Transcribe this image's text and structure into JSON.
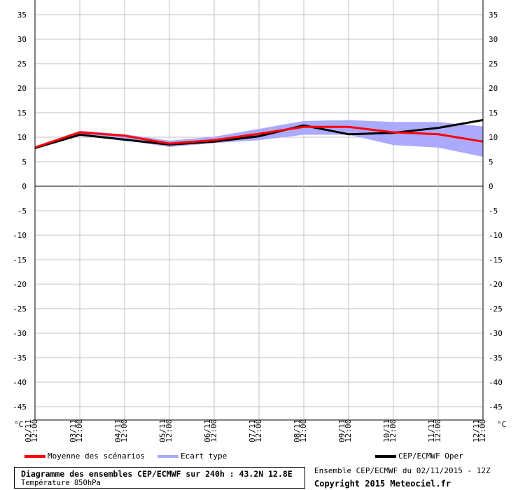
{
  "chart_data": {
    "type": "line",
    "title": "Diagramme des ensembles CEP/ECMWF sur 240h : 43.2N 12.8E",
    "subtitle": "Température 850hPa",
    "ylabel": "°C",
    "ylim": [
      -47.86,
      37
    ],
    "yticks": [
      35,
      30,
      25,
      20,
      15,
      10,
      5,
      0,
      -5,
      -10,
      -15,
      -20,
      -25,
      -30,
      -35,
      -40,
      -45
    ],
    "x": [
      "02/11 12:00",
      "03/11 12:00",
      "04/11 12:00",
      "05/11 12:00",
      "06/11 12:00",
      "07/11 12:00",
      "08/11 12:00",
      "09/11 12:00",
      "10/11 12:00",
      "11/11 12:00",
      "12/11 12:00"
    ],
    "series": [
      {
        "name": "Moyenne des scénarios",
        "color": "#ff0000",
        "values": [
          7.9,
          11.0,
          10.3,
          8.7,
          9.4,
          10.7,
          12.1,
          12.1,
          11.0,
          10.6,
          9.1
        ]
      },
      {
        "name": "CEP/ECMWF Oper",
        "color": "#000000",
        "values": [
          7.8,
          10.5,
          9.5,
          8.5,
          9.1,
          10.2,
          12.4,
          10.6,
          10.9,
          11.9,
          13.5
        ]
      }
    ],
    "band": {
      "name": "Ecart type",
      "color": "#aaaaff",
      "upper": [
        8.1,
        11.3,
        10.6,
        9.3,
        10.1,
        11.7,
        13.3,
        13.5,
        13.1,
        13.1,
        12.2
      ],
      "lower": [
        7.5,
        10.6,
        9.4,
        8.0,
        8.8,
        9.4,
        10.5,
        10.5,
        8.4,
        7.9,
        6.0
      ]
    }
  },
  "legend": {
    "mean": "Moyenne des scénarios",
    "spread": "Ecart type",
    "oper": "CEP/ECMWF Oper"
  },
  "footer": {
    "title": "Diagramme des ensembles CEP/ECMWF sur 240h : 43.2N 12.8E",
    "subtitle": "Température 850hPa",
    "run": "Ensemble CEP/ECMWF du 02/11/2015 - 12Z",
    "copyright": "Copyright 2015 Meteociel.fr"
  }
}
